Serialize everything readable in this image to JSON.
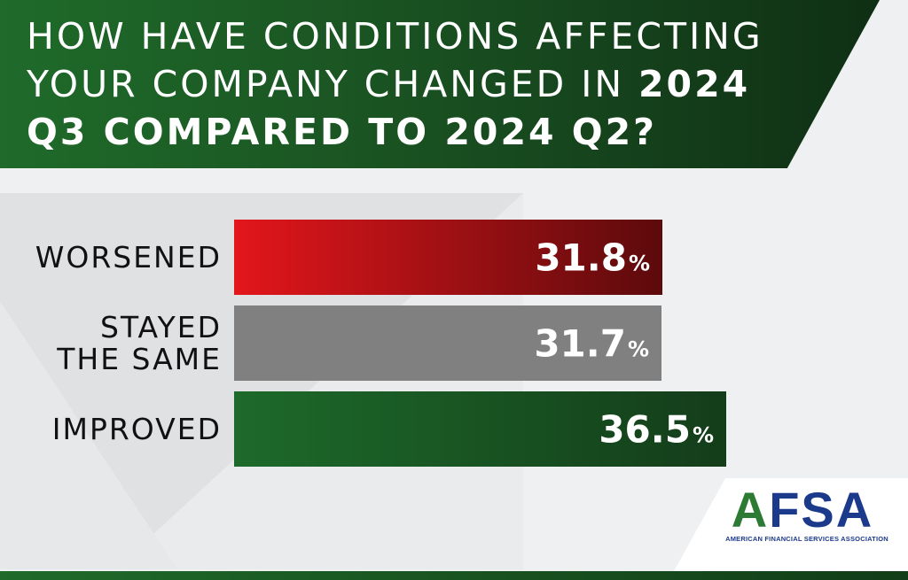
{
  "header": {
    "title_plain": "HOW HAVE CONDITIONS AFFECTING YOUR COMPANY CHANGED IN ",
    "title_bold": "2024 Q3 COMPARED TO 2024 Q2?"
  },
  "chart_data": {
    "type": "bar",
    "orientation": "horizontal",
    "title": "HOW HAVE CONDITIONS AFFECTING YOUR COMPANY CHANGED IN 2024 Q3 COMPARED TO 2024 Q2?",
    "categories": [
      "WORSENED",
      "STAYED THE SAME",
      "IMPROVED"
    ],
    "category_lines": [
      [
        "WORSENED"
      ],
      [
        "STAYED",
        "THE SAME"
      ],
      [
        "IMPROVED"
      ]
    ],
    "values": [
      31.8,
      31.7,
      36.5
    ],
    "value_labels": [
      "31.8",
      "31.7",
      "36.5"
    ],
    "unit": "%",
    "colors": [
      "#e3161b",
      "#808080",
      "#1d6a2a"
    ],
    "xlim": [
      0,
      50
    ],
    "grid": false,
    "legend": "none"
  },
  "logo": {
    "letters": "AFSA",
    "tagline": "AMERICAN FINANCIAL SERVICES ASSOCIATION",
    "colors": {
      "primary": "#1c3a8c",
      "accent": "#2d7a34"
    }
  }
}
